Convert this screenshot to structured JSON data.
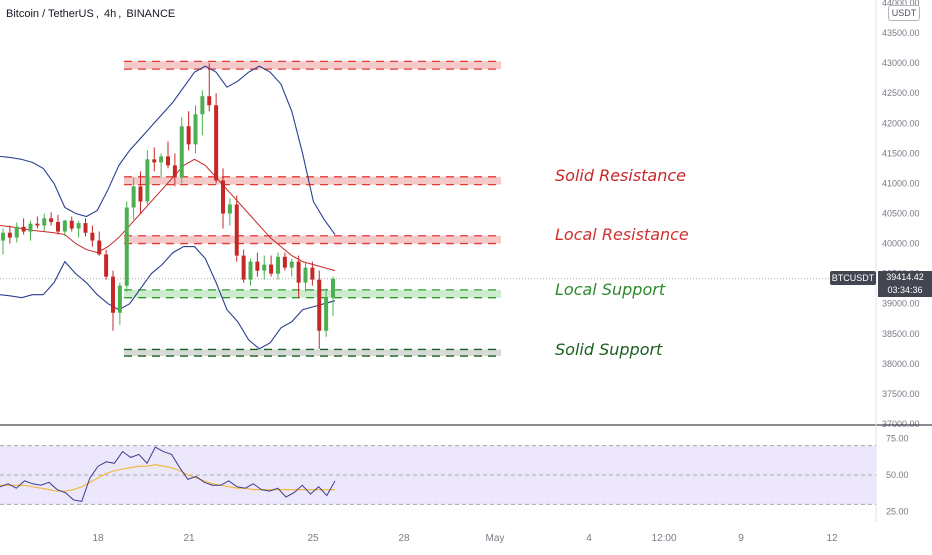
{
  "header": {
    "symbol": "Bitcoin / TetherUS",
    "interval": "4h",
    "exchange": "BINANCE"
  },
  "currency_badge": "USDT",
  "price_tag": {
    "ticker": "BTCUSDT",
    "price": "39414.42",
    "countdown": "03:34:36"
  },
  "colors": {
    "up": "#26a69a",
    "up_candle": "#4caf50",
    "down": "#c62828",
    "bb_band": "#2a3f8f",
    "bb_basis": "#c62828",
    "resistance_fill": "#f6c9c9",
    "resistance_line": "#e53935",
    "support_fill": "#cdeccd",
    "support_line": "#2e9a2e",
    "solid_support_line": "#1b5e20",
    "rsi_line": "#3d3d8f",
    "rsi_ma": "#f2b632",
    "rsi_band": "#ede7fb"
  },
  "annotations": [
    {
      "text": "Solid Resistance",
      "color": "#c62828"
    },
    {
      "text": "Local Resistance",
      "color": "#d32f2f"
    },
    {
      "text": "Local Support",
      "color": "#2e8b2e"
    },
    {
      "text": "Solid Support",
      "color": "#1b5e20"
    }
  ],
  "chart_data": [
    {
      "type": "candlestick",
      "title": "Bitcoin / TetherUS, 4h, BINANCE",
      "ylim": [
        37000,
        44000
      ],
      "y_ticks": [
        "37000.00",
        "37500.00",
        "38000.00",
        "38500.00",
        "39000.00",
        "39500.00",
        "40000.00",
        "40500.00",
        "41000.00",
        "41500.00",
        "42000.00",
        "42500.00",
        "43000.00",
        "43500.00",
        "44000.00"
      ],
      "x_ticks": [
        "18",
        "21",
        "25",
        "28",
        "May",
        "4",
        "12:00",
        "9",
        "12"
      ],
      "last_price": 39414.42,
      "zones": [
        {
          "name": "Solid Resistance",
          "low": 42900,
          "high": 43030
        },
        {
          "name": "Solid Resistance",
          "low": 40980,
          "high": 41110
        },
        {
          "name": "Local Resistance",
          "low": 40000,
          "high": 40130
        },
        {
          "name": "Local Support",
          "low": 39100,
          "high": 39230
        },
        {
          "name": "Solid Support",
          "low": 38130,
          "high": 38240
        }
      ],
      "candles": [
        [
          40050,
          40250,
          39820,
          40180
        ],
        [
          40180,
          40300,
          40000,
          40100
        ],
        [
          40100,
          40350,
          40020,
          40280
        ],
        [
          40280,
          40420,
          40150,
          40200
        ],
        [
          40200,
          40380,
          40050,
          40330
        ],
        [
          40330,
          40450,
          40250,
          40300
        ],
        [
          40300,
          40500,
          40200,
          40420
        ],
        [
          40420,
          40520,
          40300,
          40360
        ],
        [
          40360,
          40480,
          40150,
          40200
        ],
        [
          40200,
          40400,
          40120,
          40380
        ],
        [
          40380,
          40450,
          40200,
          40250
        ],
        [
          40250,
          40380,
          40100,
          40340
        ],
        [
          40340,
          40420,
          40120,
          40180
        ],
        [
          40180,
          40300,
          39950,
          40050
        ],
        [
          40050,
          40200,
          39800,
          39820
        ],
        [
          39820,
          39900,
          39400,
          39450
        ],
        [
          39450,
          39550,
          38550,
          38850
        ],
        [
          38850,
          39350,
          38650,
          39300
        ],
        [
          39300,
          40700,
          39200,
          40600
        ],
        [
          40600,
          41100,
          40400,
          40950
        ],
        [
          40950,
          41200,
          40500,
          40700
        ],
        [
          40700,
          41550,
          40650,
          41400
        ],
        [
          41400,
          41600,
          41200,
          41350
        ],
        [
          41350,
          41500,
          41100,
          41450
        ],
        [
          41450,
          41700,
          41250,
          41300
        ],
        [
          41300,
          41500,
          40950,
          41100
        ],
        [
          41100,
          42100,
          41000,
          41950
        ],
        [
          41950,
          42200,
          41550,
          41650
        ],
        [
          41650,
          42300,
          41500,
          42150
        ],
        [
          42150,
          42550,
          41800,
          42450
        ],
        [
          42450,
          43000,
          42200,
          42300
        ],
        [
          42300,
          42500,
          41000,
          41050
        ],
        [
          41050,
          41250,
          40250,
          40500
        ],
        [
          40500,
          40750,
          40300,
          40650
        ],
        [
          40650,
          40800,
          39700,
          39800
        ],
        [
          39800,
          39900,
          39350,
          39400
        ],
        [
          39400,
          39750,
          39300,
          39700
        ],
        [
          39700,
          39850,
          39450,
          39550
        ],
        [
          39550,
          39800,
          39400,
          39650
        ],
        [
          39650,
          39800,
          39450,
          39500
        ],
        [
          39500,
          39850,
          39400,
          39780
        ],
        [
          39780,
          39850,
          39550,
          39600
        ],
        [
          39600,
          39750,
          39450,
          39700
        ],
        [
          39700,
          39800,
          39100,
          39350
        ],
        [
          39350,
          39700,
          39200,
          39600
        ],
        [
          39600,
          39700,
          39300,
          39400
        ],
        [
          39400,
          39550,
          38250,
          38550
        ],
        [
          38550,
          39250,
          38450,
          39100
        ],
        [
          39100,
          39450,
          38800,
          39414
        ]
      ],
      "bollinger": {
        "upper": [
          41450,
          41430,
          41400,
          41350,
          41250,
          41000,
          40600,
          40500,
          40450,
          40550,
          40900,
          41300,
          41550,
          41750,
          41950,
          42150,
          42350,
          42600,
          42850,
          42950,
          42850,
          42600,
          42700,
          42850,
          42950,
          42850,
          42650,
          42200,
          41500,
          40700,
          40400,
          40150
        ],
        "basis": [
          40300,
          40280,
          40250,
          40220,
          40200,
          40180,
          40150,
          40000,
          39900,
          39850,
          39950,
          40100,
          40300,
          40500,
          40700,
          40900,
          41100,
          41300,
          41400,
          41300,
          41100,
          40900,
          40700,
          40500,
          40300,
          40100,
          39950,
          39800,
          39700,
          39650,
          39600,
          39550
        ],
        "lower": [
          39150,
          39130,
          39100,
          39150,
          39150,
          39350,
          39700,
          39500,
          39350,
          39150,
          39000,
          38900,
          39000,
          39250,
          39500,
          39650,
          39850,
          39950,
          39950,
          39750,
          39350,
          38900,
          38700,
          38400,
          38250,
          38350,
          38600,
          38700,
          38900,
          38950,
          39000,
          39050
        ]
      }
    },
    {
      "type": "line",
      "title": "RSI",
      "ylim": [
        20,
        80
      ],
      "y_ticks": [
        "25.00",
        "50.00",
        "75.00"
      ],
      "bands": [
        30,
        50,
        70
      ],
      "series": [
        {
          "values": [
            42,
            44,
            41,
            46,
            44,
            43,
            45,
            40,
            38,
            33,
            32,
            48,
            56,
            59,
            58,
            66,
            62,
            64,
            58,
            69,
            66,
            64,
            55,
            47,
            49,
            45,
            43,
            43,
            46,
            42,
            41,
            44,
            40,
            39,
            41,
            35,
            38,
            43,
            37,
            42,
            36,
            46
          ]
        },
        {
          "values": [
            43,
            43,
            43,
            43,
            42,
            41,
            40,
            39,
            39,
            40,
            42,
            45,
            48,
            51,
            53,
            54,
            55,
            56,
            56,
            57,
            56,
            55,
            53,
            50,
            48,
            46,
            44,
            43,
            42,
            41,
            41,
            40,
            40,
            40,
            40,
            40,
            40,
            40,
            40,
            40,
            40,
            40
          ]
        }
      ]
    }
  ]
}
